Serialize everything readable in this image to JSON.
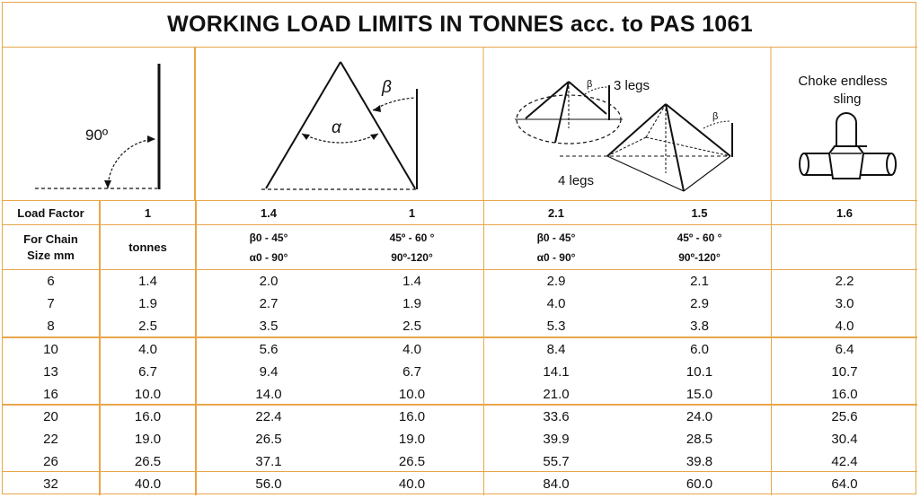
{
  "title": "WORKING LOAD LIMITS IN TONNES acc. to PAS 1061",
  "diagrams": {
    "right_angle_label": "90º",
    "alpha": "α",
    "beta": "β",
    "three_legs": "3 legs",
    "four_legs": "4 legs",
    "beta_small_1": "β",
    "beta_small_2": "β",
    "choke_line1": "Choke endless",
    "choke_line2": "sling"
  },
  "header": {
    "load_factor_label": "Load Factor",
    "factors": [
      "1",
      "1.4",
      "1",
      "2.1",
      "1.5",
      "1.6"
    ],
    "chain_size_line1": "For Chain",
    "chain_size_line2": "Size mm",
    "unit": "tonnes",
    "angle_ranges": [
      {
        "l1": "β0 - 45°",
        "l2": "α0 - 90°"
      },
      {
        "l1": "45º - 60 °",
        "l2": "90º-120°"
      },
      {
        "l1": "β0 - 45°",
        "l2": "α0 - 90°"
      },
      {
        "l1": "45º - 60 °",
        "l2": "90º-120°"
      }
    ]
  },
  "rows": [
    [
      "6",
      "1.4",
      "2.0",
      "1.4",
      "2.9",
      "2.1",
      "2.2"
    ],
    [
      "7",
      "1.9",
      "2.7",
      "1.9",
      "4.0",
      "2.9",
      "3.0"
    ],
    [
      "8",
      "2.5",
      "3.5",
      "2.5",
      "5.3",
      "3.8",
      "4.0"
    ],
    [
      "10",
      "4.0",
      "5.6",
      "4.0",
      "8.4",
      "6.0",
      "6.4"
    ],
    [
      "13",
      "6.7",
      "9.4",
      "6.7",
      "14.1",
      "10.1",
      "10.7"
    ],
    [
      "16",
      "10.0",
      "14.0",
      "10.0",
      "21.0",
      "15.0",
      "16.0"
    ],
    [
      "20",
      "16.0",
      "22.4",
      "16.0",
      "33.6",
      "24.0",
      "25.6"
    ],
    [
      "22",
      "19.0",
      "26.5",
      "19.0",
      "39.9",
      "28.5",
      "30.4"
    ],
    [
      "26",
      "26.5",
      "37.1",
      "26.5",
      "55.7",
      "39.8",
      "42.4"
    ],
    [
      "32",
      "40.0",
      "56.0",
      "40.0",
      "84.0",
      "60.0",
      "64.0"
    ]
  ]
}
